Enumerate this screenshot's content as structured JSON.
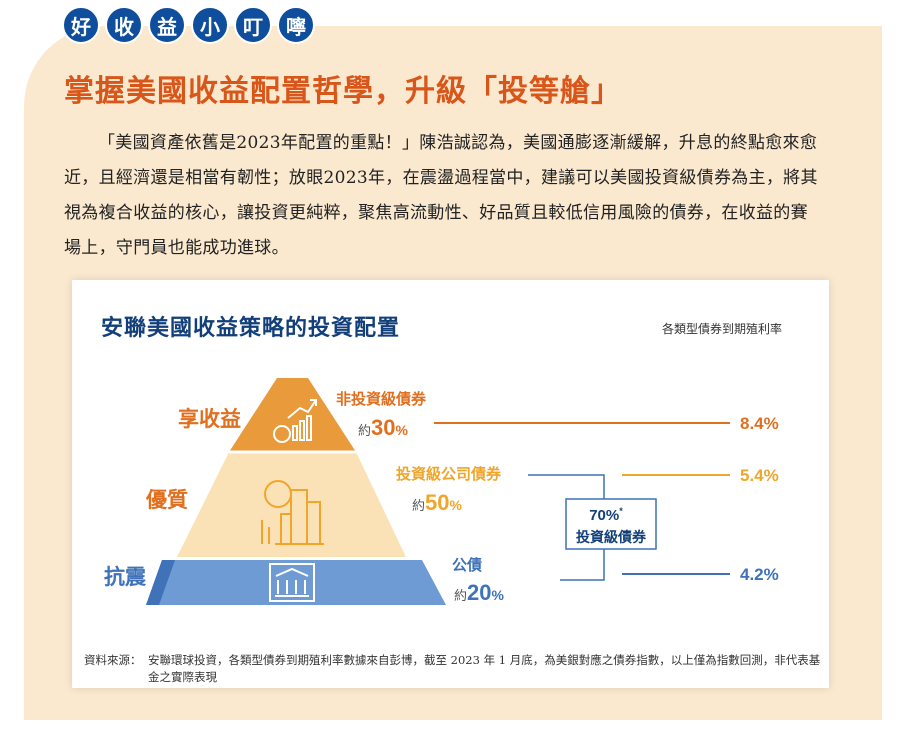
{
  "tag_chars": [
    "好",
    "收",
    "益",
    "小",
    "叮",
    "嚀"
  ],
  "headline": "掌握美國收益配置哲學，升級「投等艙」",
  "paragraph": "「美國資產依舊是2023年配置的重點！」陳浩誠認為，美國通膨逐漸緩解，升息的終點愈來愈近，且經濟還是相當有韌性；放眼2023年，在震盪過程當中，建議可以美國投資級債券為主，將其視為複合收益的核心，讓投資更純粹，聚焦高流動性、好品質且較低信用風險的債券，在收益的賽場上，守門員也能成功進球。",
  "card": {
    "title": "安聯美國收益策略的投資配置",
    "note": "各類型債券到期殖利率",
    "tiers": [
      {
        "level": "享收益",
        "asset": "非投資級債券",
        "prefix": "約",
        "share": "30",
        "unit": "%",
        "yield": "8.4%",
        "color": "#e99a3a",
        "icon": "money-bag-chart-icon"
      },
      {
        "level": "優質",
        "asset": "投資級公司債券",
        "prefix": "約",
        "share": "50",
        "unit": "%",
        "yield": "5.4%",
        "color": "#f6bb54",
        "icon": "coin-buildings-icon"
      },
      {
        "level": "抗震",
        "asset": "公債",
        "prefix": "約",
        "share": "20",
        "unit": "%",
        "yield": "4.2%",
        "color": "#6e9bd3",
        "icon": "government-building-icon"
      }
    ],
    "bracket_pct": "70%",
    "bracket_sup": "*",
    "bracket_label": "投資級債券",
    "source_label": "資料來源：",
    "source_text": "安聯環球投資，各類型債券到期殖利率數據來自彭博，截至 2023 年 1 月底，為美銀對應之債券指數，以上僅為指數回測，非代表基金之實際表現"
  },
  "colors": {
    "navy": "#123f7a",
    "headline_orange": "#d9561b",
    "tier_label_orange": "#e07020",
    "tag_blue": "#0f4e9c"
  }
}
